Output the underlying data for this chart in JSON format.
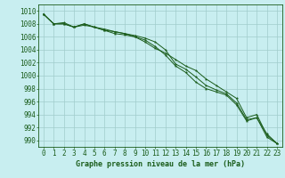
{
  "title": "Graphe pression niveau de la mer (hPa)",
  "background_color": "#c8eef0",
  "grid_color": "#a0cccc",
  "line_color": "#1a5c1a",
  "xlim": [
    -0.5,
    23.5
  ],
  "ylim": [
    989,
    1011
  ],
  "yticks": [
    990,
    992,
    994,
    996,
    998,
    1000,
    1002,
    1004,
    1006,
    1008,
    1010
  ],
  "xticks": [
    0,
    1,
    2,
    3,
    4,
    5,
    6,
    7,
    8,
    9,
    10,
    11,
    12,
    13,
    14,
    15,
    16,
    17,
    18,
    19,
    20,
    21,
    22,
    23
  ],
  "line1": [
    1009.5,
    1008.0,
    1008.0,
    1007.5,
    1008.0,
    1007.5,
    1007.0,
    1006.5,
    1006.3,
    1006.0,
    1005.2,
    1004.2,
    1003.5,
    1002.5,
    1001.5,
    1000.8,
    999.5,
    998.5,
    997.5,
    996.5,
    993.5,
    994.0,
    990.8,
    989.5
  ],
  "line2": [
    1009.5,
    1008.0,
    1008.0,
    1007.5,
    1008.0,
    1007.5,
    1007.0,
    1006.8,
    1006.5,
    1006.2,
    1005.8,
    1005.2,
    1004.0,
    1001.8,
    1001.0,
    999.8,
    998.5,
    997.8,
    997.2,
    995.8,
    993.2,
    993.5,
    991.0,
    989.5
  ],
  "line3": [
    1009.5,
    1008.0,
    1008.2,
    1007.5,
    1007.8,
    1007.5,
    1007.2,
    1006.8,
    1006.5,
    1006.0,
    1005.5,
    1004.5,
    1003.2,
    1001.5,
    1000.5,
    999.0,
    998.0,
    997.5,
    997.0,
    995.5,
    993.0,
    993.5,
    990.5,
    989.5
  ],
  "tick_fontsize": 5.5,
  "xlabel_fontsize": 6.0
}
